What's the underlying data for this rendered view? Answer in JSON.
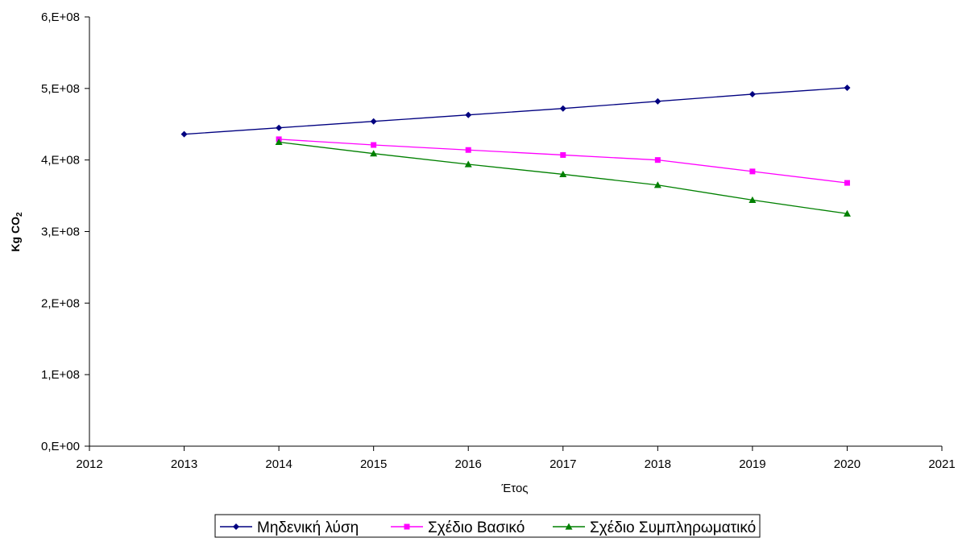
{
  "chart_data": {
    "type": "line",
    "title": "",
    "xlabel": "Έτος",
    "ylabel_main": "Kg CO",
    "ylabel_sub": "2",
    "xlim": [
      2012,
      2021
    ],
    "ylim": [
      0,
      600000000
    ],
    "x_ticks": [
      2012,
      2013,
      2014,
      2015,
      2016,
      2017,
      2018,
      2019,
      2020,
      2021
    ],
    "y_ticks": [
      0,
      100000000,
      200000000,
      300000000,
      400000000,
      500000000,
      600000000
    ],
    "y_tick_labels": [
      "0,E+00",
      "1,E+08",
      "2,E+08",
      "3,E+08",
      "4,E+08",
      "5,E+08",
      "6,E+08"
    ],
    "grid": false,
    "legend_position": "bottom",
    "series": [
      {
        "name": "Μηδενική λύση",
        "color": "#000080",
        "marker": "diamond",
        "x": [
          2013,
          2014,
          2015,
          2016,
          2017,
          2018,
          2019,
          2020
        ],
        "values": [
          436000000,
          445000000,
          454000000,
          463000000,
          472000000,
          482000000,
          492000000,
          501000000
        ]
      },
      {
        "name": "Σχέδιο Βασικό",
        "color": "#FF00FF",
        "marker": "square",
        "x": [
          2014,
          2015,
          2016,
          2017,
          2018,
          2019,
          2020
        ],
        "values": [
          429000000,
          421000000,
          414000000,
          407000000,
          400000000,
          384000000,
          368000000
        ]
      },
      {
        "name": "Σχέδιο Συμπληρωματικό",
        "color": "#008000",
        "marker": "triangle",
        "x": [
          2014,
          2015,
          2016,
          2017,
          2018,
          2019,
          2020
        ],
        "values": [
          425000000,
          409000000,
          394000000,
          380000000,
          365000000,
          344000000,
          325000000
        ]
      }
    ]
  }
}
